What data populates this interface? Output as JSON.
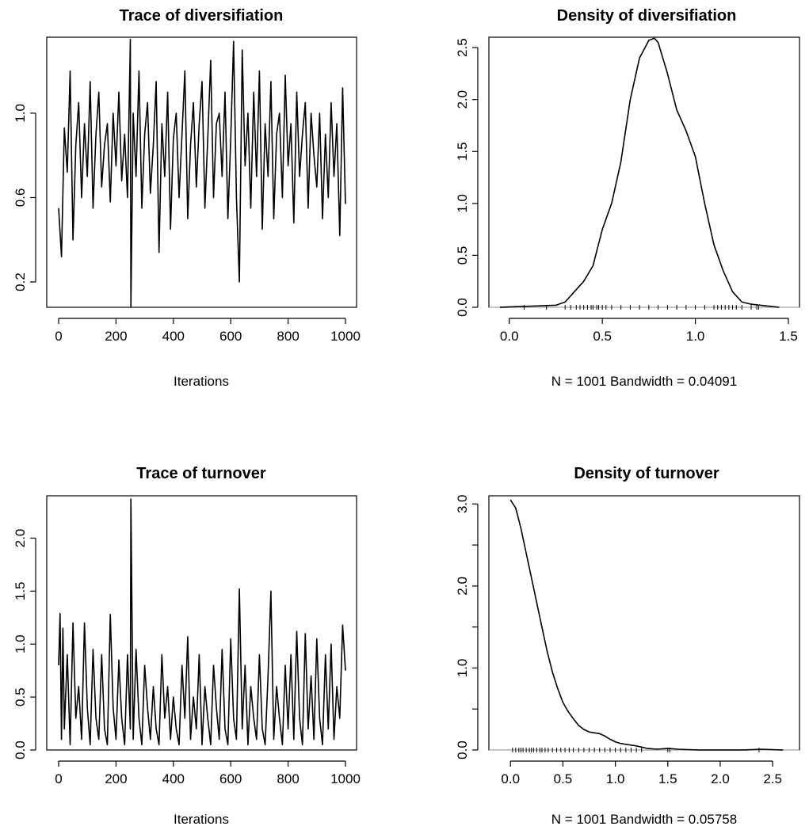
{
  "chart_data": [
    {
      "panel": "trace_diversification",
      "type": "line",
      "title": "Trace of diversifiation",
      "xlabel": "Iterations",
      "ylabel": "",
      "xlim": [
        0,
        1000
      ],
      "ylim": [
        0.08,
        1.36
      ],
      "xticks": [
        0,
        200,
        400,
        600,
        800,
        1000
      ],
      "xtick_labels": [
        "0",
        "200",
        "400",
        "600",
        "800",
        "1000"
      ],
      "yticks": [
        0.2,
        0.6,
        1.0
      ],
      "ytick_labels": [
        "0.2",
        "0.6",
        "1.0"
      ],
      "series": [
        {
          "x": [
            0,
            10,
            20,
            30,
            40,
            50,
            60,
            70,
            80,
            90,
            100,
            110,
            120,
            130,
            140,
            150,
            160,
            170,
            180,
            190,
            200,
            210,
            220,
            230,
            240,
            250,
            252,
            260,
            270,
            280,
            290,
            300,
            310,
            320,
            330,
            340,
            350,
            360,
            370,
            380,
            390,
            400,
            410,
            420,
            430,
            440,
            450,
            460,
            470,
            480,
            490,
            500,
            510,
            520,
            530,
            540,
            550,
            560,
            570,
            580,
            590,
            600,
            610,
            620,
            630,
            640,
            650,
            660,
            670,
            680,
            690,
            700,
            710,
            720,
            730,
            740,
            750,
            760,
            770,
            780,
            790,
            800,
            810,
            820,
            830,
            840,
            850,
            860,
            870,
            880,
            890,
            900,
            910,
            920,
            930,
            940,
            950,
            960,
            970,
            980,
            990,
            1000
          ],
          "values": [
            0.55,
            0.32,
            0.93,
            0.72,
            1.2,
            0.4,
            0.85,
            1.05,
            0.6,
            0.95,
            0.7,
            1.15,
            0.55,
            0.9,
            1.1,
            0.65,
            0.85,
            0.95,
            0.58,
            1.0,
            0.75,
            1.1,
            0.68,
            0.9,
            0.6,
            1.35,
            0.08,
            1.0,
            0.7,
            1.2,
            0.55,
            0.9,
            1.05,
            0.62,
            0.85,
            1.15,
            0.34,
            0.95,
            0.7,
            1.1,
            0.45,
            0.88,
            1.0,
            0.6,
            0.9,
            1.2,
            0.5,
            0.85,
            1.05,
            0.65,
            0.95,
            1.15,
            0.55,
            0.88,
            1.25,
            0.6,
            0.95,
            1.0,
            0.7,
            1.1,
            0.5,
            0.88,
            1.34,
            0.6,
            0.2,
            1.3,
            0.75,
            1.0,
            0.55,
            1.1,
            0.7,
            1.2,
            0.45,
            0.95,
            0.7,
            1.15,
            0.5,
            0.9,
            1.0,
            0.6,
            1.18,
            0.75,
            0.95,
            0.48,
            1.1,
            0.7,
            0.9,
            1.05,
            0.55,
            1.0,
            0.8,
            0.65,
            1.0,
            0.5,
            0.9,
            0.6,
            1.05,
            0.7,
            0.95,
            0.42,
            1.12,
            0.57
          ]
        }
      ]
    },
    {
      "panel": "density_diversification",
      "type": "area",
      "title": "Density of diversifiation",
      "xlabel": "N = 1001   Bandwidth = 0.04091",
      "ylabel": "",
      "xlim": [
        -0.05,
        1.5
      ],
      "ylim": [
        0,
        2.6
      ],
      "xticks": [
        0.0,
        0.5,
        1.0,
        1.5
      ],
      "xtick_labels": [
        "0.0",
        "0.5",
        "1.0",
        "1.5"
      ],
      "yticks": [
        0.0,
        0.5,
        1.0,
        1.5,
        2.0,
        2.5
      ],
      "ytick_labels": [
        "0.0",
        "0.5",
        "1.0",
        "1.5",
        "2.0",
        "2.5"
      ],
      "series": [
        {
          "x": [
            -0.05,
            0.1,
            0.25,
            0.3,
            0.35,
            0.4,
            0.45,
            0.5,
            0.55,
            0.6,
            0.65,
            0.7,
            0.75,
            0.78,
            0.8,
            0.85,
            0.9,
            0.95,
            1.0,
            1.05,
            1.1,
            1.15,
            1.2,
            1.25,
            1.3,
            1.35,
            1.4,
            1.45
          ],
          "values": [
            0.0,
            0.01,
            0.02,
            0.05,
            0.15,
            0.25,
            0.4,
            0.75,
            1.0,
            1.4,
            2.0,
            2.4,
            2.57,
            2.59,
            2.55,
            2.25,
            1.9,
            1.7,
            1.45,
            1.0,
            0.6,
            0.35,
            0.15,
            0.05,
            0.03,
            0.02,
            0.01,
            0.0
          ]
        }
      ],
      "rug": [
        0.08,
        0.2,
        0.3,
        0.33,
        0.36,
        0.38,
        0.4,
        0.42,
        0.44,
        0.45,
        0.47,
        0.48,
        0.5,
        0.52,
        0.55,
        0.6,
        0.65,
        0.7,
        0.75,
        0.8,
        0.85,
        0.9,
        0.95,
        1.0,
        1.05,
        1.1,
        1.12,
        1.14,
        1.16,
        1.18,
        1.2,
        1.22,
        1.25,
        1.3,
        1.33,
        1.34
      ]
    },
    {
      "panel": "trace_turnover",
      "type": "line",
      "title": "Trace of turnover",
      "xlabel": "Iterations",
      "ylabel": "",
      "xlim": [
        0,
        1000
      ],
      "ylim": [
        0,
        2.4
      ],
      "xticks": [
        0,
        200,
        400,
        600,
        800,
        1000
      ],
      "xtick_labels": [
        "0",
        "200",
        "400",
        "600",
        "800",
        "1000"
      ],
      "yticks": [
        0.0,
        0.5,
        1.0,
        1.5,
        2.0
      ],
      "ytick_labels": [
        "0.0",
        "0.5",
        "1.0",
        "1.5",
        "2.0"
      ],
      "series": [
        {
          "x": [
            0,
            5,
            10,
            15,
            20,
            30,
            40,
            50,
            60,
            70,
            80,
            90,
            100,
            110,
            120,
            130,
            140,
            150,
            160,
            170,
            180,
            190,
            200,
            210,
            220,
            230,
            240,
            250,
            252,
            260,
            270,
            280,
            290,
            300,
            310,
            320,
            330,
            340,
            350,
            360,
            370,
            380,
            390,
            400,
            410,
            420,
            430,
            440,
            450,
            460,
            470,
            480,
            490,
            500,
            510,
            520,
            530,
            540,
            550,
            560,
            570,
            580,
            590,
            600,
            610,
            620,
            630,
            640,
            650,
            660,
            670,
            680,
            690,
            700,
            710,
            720,
            730,
            740,
            750,
            760,
            770,
            780,
            790,
            800,
            810,
            820,
            830,
            840,
            850,
            860,
            870,
            880,
            890,
            900,
            910,
            920,
            930,
            940,
            950,
            960,
            970,
            980,
            990,
            1000
          ],
          "values": [
            0.8,
            1.29,
            0.1,
            1.15,
            0.2,
            0.9,
            0.05,
            1.2,
            0.3,
            0.6,
            0.1,
            1.2,
            0.4,
            0.05,
            0.95,
            0.3,
            0.1,
            0.9,
            0.2,
            0.05,
            1.28,
            0.4,
            0.1,
            0.85,
            0.3,
            0.05,
            0.9,
            0.2,
            2.37,
            0.1,
            0.95,
            0.3,
            0.05,
            0.8,
            0.4,
            0.1,
            0.6,
            0.2,
            0.05,
            0.9,
            0.3,
            0.6,
            0.1,
            0.5,
            0.2,
            0.05,
            0.8,
            0.3,
            1.07,
            0.1,
            0.5,
            0.2,
            0.9,
            0.05,
            0.6,
            0.3,
            0.05,
            0.8,
            0.4,
            0.1,
            0.95,
            0.2,
            0.05,
            1.05,
            0.3,
            0.1,
            1.52,
            0.2,
            0.8,
            0.05,
            0.6,
            0.3,
            0.1,
            0.9,
            0.2,
            0.05,
            0.7,
            1.5,
            0.1,
            0.6,
            0.3,
            0.05,
            0.8,
            0.2,
            0.9,
            0.1,
            1.12,
            0.3,
            0.05,
            1.1,
            0.2,
            0.7,
            0.1,
            1.05,
            0.3,
            0.05,
            0.9,
            0.2,
            1.0,
            0.1,
            0.6,
            0.3,
            1.18,
            0.75
          ]
        }
      ]
    },
    {
      "panel": "density_turnover",
      "type": "area",
      "title": "Density of turnover",
      "xlabel": "N = 1001   Bandwidth = 0.05758",
      "ylabel": "",
      "xlim": [
        -0.1,
        2.65
      ],
      "ylim": [
        0,
        3.1
      ],
      "xticks": [
        0.0,
        0.5,
        1.0,
        1.5,
        2.0,
        2.5
      ],
      "xtick_labels": [
        "0.0",
        "0.5",
        "1.0",
        "1.5",
        "2.0",
        "2.5"
      ],
      "yticks": [
        0.0,
        0.5,
        1.0,
        1.5,
        2.0,
        2.5,
        3.0
      ],
      "ytick_labels": [
        "0.0",
        "",
        "1.0",
        "",
        "2.0",
        "",
        "3.0"
      ],
      "series": [
        {
          "x": [
            0.0,
            0.05,
            0.1,
            0.15,
            0.2,
            0.25,
            0.3,
            0.35,
            0.4,
            0.45,
            0.5,
            0.55,
            0.6,
            0.65,
            0.7,
            0.75,
            0.8,
            0.85,
            0.9,
            0.95,
            1.0,
            1.05,
            1.1,
            1.15,
            1.2,
            1.3,
            1.4,
            1.5,
            1.6,
            1.8,
            2.0,
            2.2,
            2.4,
            2.6
          ],
          "values": [
            3.05,
            2.95,
            2.7,
            2.4,
            2.1,
            1.8,
            1.5,
            1.2,
            0.95,
            0.75,
            0.58,
            0.47,
            0.38,
            0.3,
            0.25,
            0.22,
            0.21,
            0.2,
            0.17,
            0.13,
            0.1,
            0.08,
            0.07,
            0.06,
            0.05,
            0.02,
            0.01,
            0.02,
            0.01,
            0.0,
            0.0,
            0.0,
            0.01,
            0.0
          ]
        }
      ],
      "rug": [
        0.02,
        0.05,
        0.08,
        0.1,
        0.12,
        0.15,
        0.18,
        0.2,
        0.22,
        0.25,
        0.28,
        0.3,
        0.33,
        0.36,
        0.4,
        0.44,
        0.48,
        0.52,
        0.56,
        0.6,
        0.65,
        0.7,
        0.75,
        0.8,
        0.85,
        0.9,
        0.95,
        1.0,
        1.05,
        1.1,
        1.15,
        1.2,
        1.25,
        1.5,
        1.52,
        2.37
      ]
    }
  ]
}
